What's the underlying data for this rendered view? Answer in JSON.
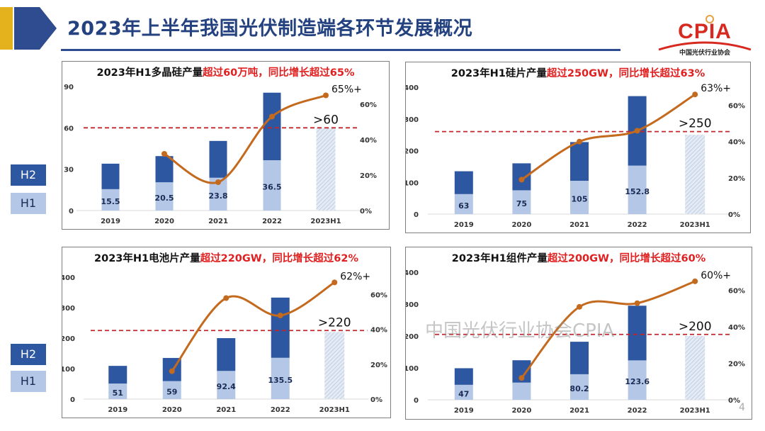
{
  "header": {
    "title": "2023年上半年我国光伏制造端各环节发展概况"
  },
  "logo": {
    "main": "CPIA",
    "sub": "中国光伏行业协会"
  },
  "legend": {
    "h2": "H2",
    "h1": "H1"
  },
  "watermark": "中国光伏行业协会CPIA",
  "page_number": "4",
  "colors": {
    "h2": "#2d57a0",
    "h1": "#b4c7e7",
    "line": "#c46a1f",
    "threshold": "#c0282d",
    "title_red": "#e02020"
  },
  "chart_data": [
    {
      "type": "bar",
      "title_black": "2023年H1多晶硅产量",
      "title_red": "超过60万吨，同比增长超过65%",
      "categories": [
        "2019",
        "2020",
        "2021",
        "2022",
        "2023H1"
      ],
      "series": [
        {
          "name": "H1",
          "values": [
            15.5,
            20.5,
            23.8,
            36.5,
            null
          ]
        },
        {
          "name": "H2",
          "values": [
            18.5,
            19,
            26.7,
            49,
            null
          ]
        }
      ],
      "h1_labels": [
        "15.5",
        "20.5",
        "23.8",
        "36.5"
      ],
      "estimate_2023H1": 60,
      "estimate_label": ">60",
      "growth": [
        null,
        32,
        16,
        53,
        65
      ],
      "growth_label": "65%+",
      "yticks": [
        "0",
        "30",
        "60",
        "90"
      ],
      "ylim": [
        0,
        90
      ],
      "y2ticks": [
        "0%",
        "20%",
        "40%",
        "60%"
      ],
      "y2lim": [
        0,
        70
      ],
      "threshold": 60
    },
    {
      "type": "bar",
      "title_black": "2023年H1硅片产量",
      "title_red": "超过250GW，同比增长超过63%",
      "categories": [
        "2019",
        "2020",
        "2021",
        "2022",
        "2023H1"
      ],
      "series": [
        {
          "name": "H1",
          "values": [
            63,
            75,
            105,
            152.8,
            null
          ]
        },
        {
          "name": "H2",
          "values": [
            72,
            85,
            122,
            219,
            null
          ]
        }
      ],
      "h1_labels": [
        "63",
        "75",
        "105",
        "152.8"
      ],
      "estimate_2023H1": 250,
      "estimate_label": ">250",
      "growth": [
        null,
        19,
        40,
        46,
        66
      ],
      "growth_label": "63%+",
      "yticks": [
        "0",
        "100",
        "200",
        "300",
        "400"
      ],
      "ylim": [
        0,
        400
      ],
      "y2ticks": [
        "0%",
        "20%",
        "40%",
        "60%"
      ],
      "y2lim": [
        0,
        70
      ],
      "threshold": 260
    },
    {
      "type": "bar",
      "title_black": "2023年H1电池片产量",
      "title_red": "超过220GW，同比增长超过62%",
      "categories": [
        "2019",
        "2020",
        "2021",
        "2022",
        "2023H1"
      ],
      "series": [
        {
          "name": "H1",
          "values": [
            51,
            59,
            92.4,
            135.5,
            null
          ]
        },
        {
          "name": "H2",
          "values": [
            58,
            76,
            107.6,
            197.5,
            null
          ]
        }
      ],
      "h1_labels": [
        "51",
        "59",
        "92.4",
        "135.5"
      ],
      "estimate_2023H1": 220,
      "estimate_label": ">220",
      "growth": [
        null,
        16,
        58,
        48,
        67
      ],
      "growth_label": "62%+",
      "yticks": [
        "0",
        "100",
        "200",
        "300",
        "400"
      ],
      "ylim": [
        0,
        400
      ],
      "y2ticks": [
        "0%",
        "20%",
        "40%",
        "60%"
      ],
      "y2lim": [
        0,
        70
      ],
      "threshold": 225
    },
    {
      "type": "bar",
      "title_black": "2023年H1组件产量",
      "title_red": "超过200GW，同比增长超过60%",
      "categories": [
        "2019",
        "2020",
        "2021",
        "2022",
        "2023H1"
      ],
      "series": [
        {
          "name": "H1",
          "values": [
            47,
            54,
            80.2,
            123.6,
            null
          ]
        },
        {
          "name": "H2",
          "values": [
            52,
            70,
            101.8,
            171.4,
            null
          ]
        }
      ],
      "h1_labels": [
        "47",
        "",
        "80.2",
        "123.6"
      ],
      "estimate_2023H1": 200,
      "estimate_label": ">200",
      "growth": [
        null,
        12,
        51,
        53,
        65
      ],
      "growth_label": "60%+",
      "yticks": [
        "0",
        "100",
        "200",
        "300",
        "400"
      ],
      "ylim": [
        0,
        400
      ],
      "y2ticks": [
        "0%",
        "20%",
        "40%",
        "60%"
      ],
      "y2lim": [
        0,
        70
      ],
      "threshold": 205
    }
  ]
}
